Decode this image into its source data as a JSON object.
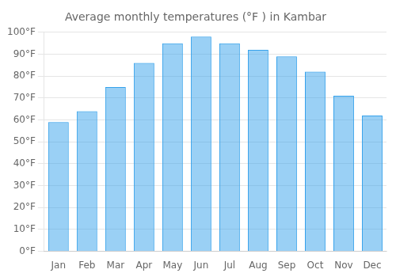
{
  "chart_data": {
    "type": "bar",
    "title": "Average monthly temperatures (°F ) in Kambar",
    "categories": [
      "Jan",
      "Feb",
      "Mar",
      "Apr",
      "May",
      "Jun",
      "Jul",
      "Aug",
      "Sep",
      "Oct",
      "Nov",
      "Dec"
    ],
    "values": [
      59,
      64,
      75,
      86,
      95,
      98,
      95,
      92,
      89,
      82,
      71,
      62
    ],
    "ylim": [
      0,
      100
    ],
    "yticks": [
      {
        "value": 0,
        "label": "0°F"
      },
      {
        "value": 10,
        "label": "10°F"
      },
      {
        "value": 20,
        "label": "20°F"
      },
      {
        "value": 30,
        "label": "30°F"
      },
      {
        "value": 40,
        "label": "40°F"
      },
      {
        "value": 50,
        "label": "50°F"
      },
      {
        "value": 60,
        "label": "60°F"
      },
      {
        "value": 70,
        "label": "70°F"
      },
      {
        "value": 80,
        "label": "80°F"
      },
      {
        "value": 90,
        "label": "90°F"
      },
      {
        "value": 100,
        "label": "100°F"
      }
    ],
    "grid": true
  }
}
